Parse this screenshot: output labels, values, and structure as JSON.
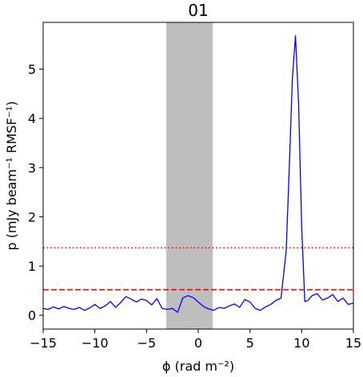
{
  "chart_data": {
    "type": "line",
    "title": "01",
    "xlabel": "ϕ (rad m⁻²)",
    "ylabel": "p (mJy beam⁻¹ RMSF⁻¹)",
    "xlim": [
      -15,
      15
    ],
    "ylim": [
      -0.28,
      5.95
    ],
    "x_ticks": [
      -15,
      -10,
      -5,
      0,
      5,
      10,
      15
    ],
    "x_tick_labels": [
      "−15",
      "−10",
      "−5",
      "0",
      "5",
      "10",
      "15"
    ],
    "y_ticks": [
      0,
      1,
      2,
      3,
      4,
      5
    ],
    "y_tick_labels": [
      "0",
      "1",
      "2",
      "3",
      "4",
      "5"
    ],
    "grid": false,
    "shaded_band": {
      "x": [
        -3.1,
        1.4
      ],
      "color": "#bebebe"
    },
    "hlines": [
      {
        "y": 0.52,
        "style": "dashed",
        "color": "#ff0000"
      },
      {
        "y": 1.37,
        "style": "dotted",
        "color": "#ff0000"
      }
    ],
    "series": [
      {
        "color": "#0000ff",
        "x": [
          -15.0,
          -14.5,
          -14.0,
          -13.5,
          -13.0,
          -12.5,
          -12.0,
          -11.5,
          -11.0,
          -10.5,
          -10.0,
          -9.5,
          -9.0,
          -8.5,
          -8.0,
          -7.5,
          -7.0,
          -6.5,
          -6.0,
          -5.5,
          -5.0,
          -4.5,
          -4.0,
          -3.5,
          -3.0,
          -2.5,
          -2.0,
          -1.5,
          -1.0,
          -0.5,
          0.0,
          0.5,
          1.0,
          1.5,
          2.0,
          2.5,
          3.0,
          3.5,
          4.0,
          4.5,
          5.0,
          5.5,
          6.0,
          6.5,
          7.0,
          7.5,
          8.0,
          8.5,
          8.8,
          9.1,
          9.4,
          9.7,
          10.0,
          10.3,
          10.6,
          11.0,
          11.5,
          12.0,
          12.5,
          13.0,
          13.5,
          14.0,
          14.5,
          15.0
        ],
        "y": [
          0.14,
          0.12,
          0.17,
          0.13,
          0.18,
          0.14,
          0.12,
          0.16,
          0.1,
          0.15,
          0.22,
          0.14,
          0.19,
          0.28,
          0.16,
          0.26,
          0.38,
          0.33,
          0.27,
          0.33,
          0.3,
          0.21,
          0.34,
          0.14,
          0.12,
          0.14,
          0.06,
          0.35,
          0.4,
          0.36,
          0.27,
          0.18,
          0.13,
          0.1,
          0.16,
          0.14,
          0.19,
          0.23,
          0.16,
          0.32,
          0.27,
          0.14,
          0.1,
          0.17,
          0.22,
          0.3,
          0.35,
          1.3,
          3.0,
          4.8,
          5.68,
          4.3,
          1.8,
          0.28,
          0.3,
          0.4,
          0.44,
          0.31,
          0.35,
          0.42,
          0.28,
          0.35,
          0.22,
          0.25
        ]
      }
    ]
  }
}
